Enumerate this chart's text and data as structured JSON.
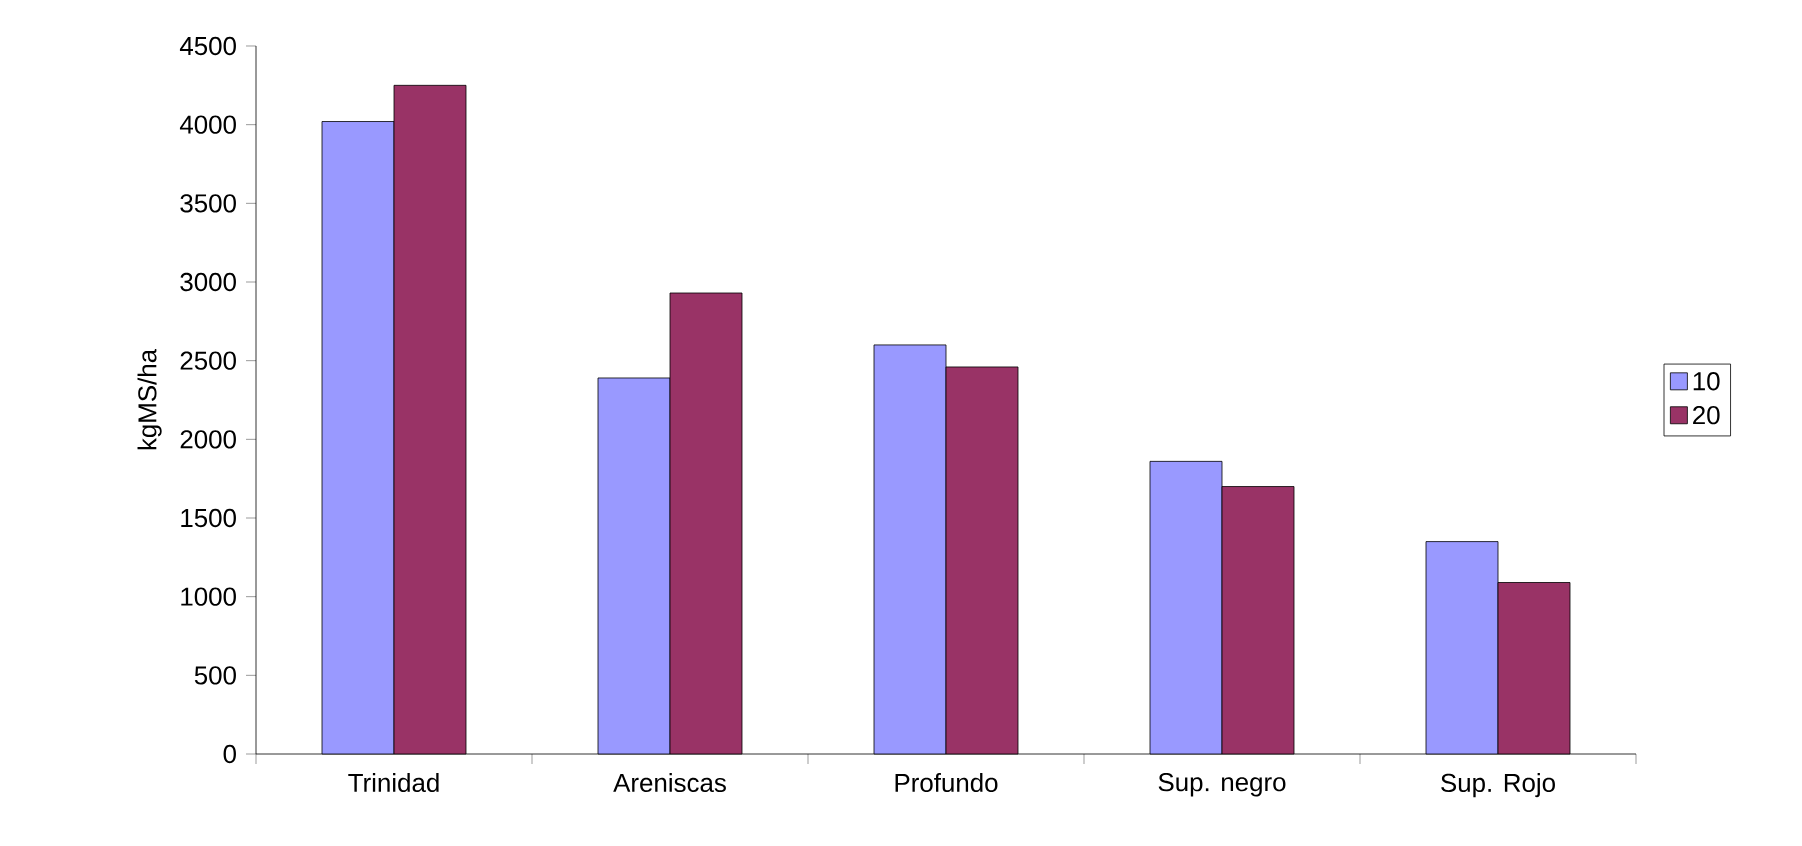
{
  "chart_data": {
    "type": "bar",
    "ylabel": "kgMS/ha",
    "categories": [
      "Trinidad",
      "Areniscas",
      "Profundo",
      "Sup. negro",
      "Sup. Rojo"
    ],
    "series": [
      {
        "name": "10",
        "color": "#9999ff",
        "values": [
          4020,
          2390,
          2600,
          1860,
          1350
        ]
      },
      {
        "name": "20",
        "color": "#993366",
        "values": [
          4250,
          2930,
          2460,
          1700,
          1090
        ]
      }
    ],
    "ylim": [
      0,
      4500
    ],
    "yticks": [
      0,
      500,
      1000,
      1500,
      2000,
      2500,
      3000,
      3500,
      4000,
      4500
    ],
    "legend": "right"
  }
}
